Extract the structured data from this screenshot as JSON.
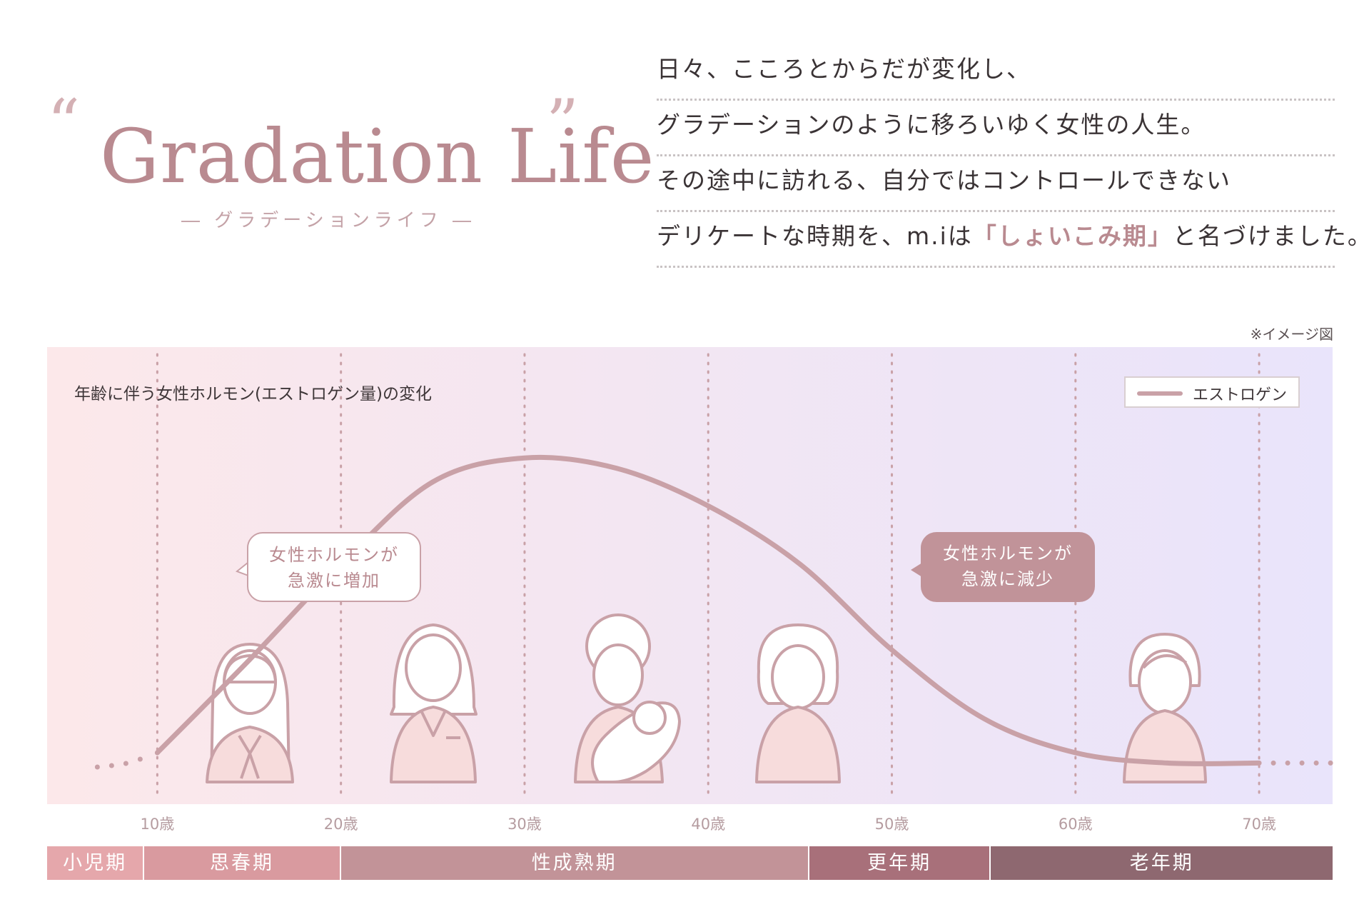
{
  "header": {
    "title": "Gradation Life",
    "subtitle": "― グラデーションライフ ―",
    "open_quote": "“",
    "close_quote": "”"
  },
  "intro": {
    "line1": "日々、こころとからだが変化し、",
    "line2": "グラデーションのように移ろいゆく女性の人生。",
    "line3": "その途中に訪れる、自分ではコントロールできない",
    "line4_pre": "デリケートな時期を、m.iは",
    "line4_highlight": "「しょいこみ期」",
    "line4_post": "と名づけました。"
  },
  "note": "※イメージ図",
  "colors": {
    "accent": "#b98a90",
    "curve": "#c9a1a7",
    "stage_childhood": "#e5a7ab",
    "stage_puberty": "#d99a9f",
    "stage_maturity": "#c29398",
    "stage_menopause": "#a8707a",
    "stage_senescence": "#8e6870"
  },
  "icons": [
    "child-girl-icon",
    "young-woman-icon",
    "mother-with-baby-icon",
    "middle-aged-woman-icon",
    "elderly-woman-icon"
  ],
  "chart_data": {
    "type": "line",
    "title": "年齢に伴う女性ホルモン(エストロゲン量)の変化",
    "xlabel": "",
    "ylabel": "",
    "x_tick_labels": [
      "10歳",
      "20歳",
      "30歳",
      "40歳",
      "50歳",
      "60歳",
      "70歳"
    ],
    "xlim": [
      4,
      74
    ],
    "ylim": [
      0,
      100
    ],
    "grid": "vertical dotted lines at each decade",
    "legend": {
      "position": "top-right",
      "entries": [
        "エストロゲン"
      ]
    },
    "series": [
      {
        "name": "エストロゲン",
        "x": [
          10,
          15,
          20,
          25,
          30,
          35,
          40,
          45,
          50,
          55,
          60,
          65,
          70
        ],
        "y": [
          5,
          32,
          60,
          84,
          91,
          88,
          77,
          60,
          35,
          15,
          5,
          2,
          2
        ]
      }
    ],
    "annotations": [
      {
        "text_line1": "女性ホルモンが",
        "text_line2": "急激に増加"
      },
      {
        "text_line1": "女性ホルモンが",
        "text_line2": "急激に減少"
      }
    ],
    "stages": [
      {
        "label": "小児期",
        "from": 4,
        "to": 9.3
      },
      {
        "label": "思春期",
        "from": 9.3,
        "to": 20
      },
      {
        "label": "性成熟期",
        "from": 20,
        "to": 45.5
      },
      {
        "label": "更年期",
        "from": 45.5,
        "to": 55.4
      },
      {
        "label": "老年期",
        "from": 55.4,
        "to": 74
      }
    ]
  }
}
